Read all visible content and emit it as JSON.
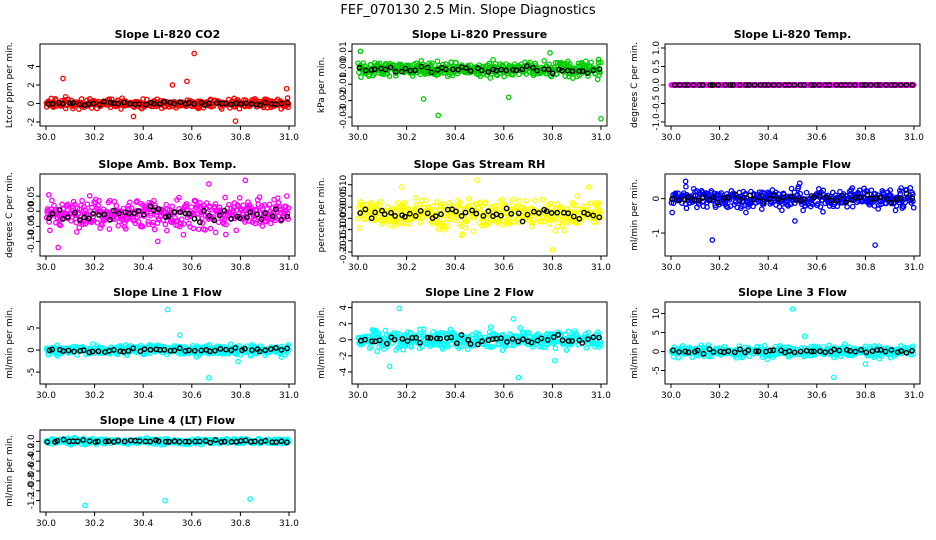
{
  "title": "FEF_070130  2.5 Min. Slope Diagnostics",
  "x_ticks": [
    "30.0",
    "30.2",
    "30.4",
    "30.6",
    "30.8",
    "31.0"
  ],
  "chart_data": [
    {
      "type": "scatter",
      "title": "Slope Li-820 CO2",
      "ylabel": "Ltcor ppm per min.",
      "xlim": [
        30.0,
        31.0
      ],
      "ylim": [
        -2.0,
        6.0
      ],
      "yticks": [
        {
          "v": -2,
          "label": "-2"
        },
        {
          "v": 0,
          "label": "0"
        },
        {
          "v": 2,
          "label": "2"
        },
        {
          "v": 4,
          "label": "4"
        }
      ],
      "color": "#ff0000",
      "center": 0.0,
      "spread": 0.35,
      "outliers": [
        {
          "x": 30.61,
          "y": 5.4
        },
        {
          "x": 30.58,
          "y": 2.4
        },
        {
          "x": 30.52,
          "y": 2.0
        },
        {
          "x": 30.07,
          "y": 2.7
        },
        {
          "x": 30.78,
          "y": -1.9
        },
        {
          "x": 30.36,
          "y": -1.4
        },
        {
          "x": 30.99,
          "y": 1.6
        }
      ]
    },
    {
      "type": "scatter",
      "title": "Slope Li-820 Pressure",
      "ylabel": "kPa per min.",
      "xlim": [
        30.0,
        31.0
      ],
      "ylim": [
        -0.033,
        0.012
      ],
      "yticks": [
        {
          "v": -0.03,
          "label": "-0.03"
        },
        {
          "v": -0.02,
          "label": "-0.02"
        },
        {
          "v": -0.01,
          "label": "-0.01"
        },
        {
          "v": 0.0,
          "label": "0.00"
        },
        {
          "v": 0.01,
          "label": "0.01"
        }
      ],
      "color": "#00cc00",
      "center": -0.001,
      "spread": 0.0032,
      "outliers": [
        {
          "x": 30.33,
          "y": -0.029
        },
        {
          "x": 31.0,
          "y": -0.031
        },
        {
          "x": 30.27,
          "y": -0.019
        },
        {
          "x": 30.62,
          "y": -0.018
        },
        {
          "x": 30.01,
          "y": 0.01
        },
        {
          "x": 30.79,
          "y": 0.009
        },
        {
          "x": 30.99,
          "y": 0.005
        }
      ]
    },
    {
      "type": "scatter",
      "title": "Slope Li-820 Temp.",
      "ylabel": "degrees C per min.",
      "xlim": [
        30.0,
        31.0
      ],
      "ylim": [
        -1.0,
        1.0
      ],
      "yticks": [
        {
          "v": -1.0,
          "label": "-1.0"
        },
        {
          "v": -0.5,
          "label": "-0.5"
        },
        {
          "v": 0.0,
          "label": "0.0"
        },
        {
          "v": 0.5,
          "label": "0.5"
        },
        {
          "v": 1.0,
          "label": "1.0"
        }
      ],
      "color": "#ff00ff",
      "center": 0.0,
      "spread": 0.0,
      "outliers": []
    },
    {
      "type": "scatter",
      "title": "Slope Amb. Box Temp.",
      "ylabel": "degrees C per min.",
      "xlim": [
        30.0,
        31.0
      ],
      "ylim": [
        -0.135,
        0.11
      ],
      "yticks": [
        {
          "v": -0.1,
          "label": "-0.10"
        },
        {
          "v": -0.05,
          "label": "-0.05"
        },
        {
          "v": 0.0,
          "label": "0.00"
        },
        {
          "v": 0.05,
          "label": "0.05"
        }
      ],
      "color": "#ff00ff",
      "center": -0.01,
      "spread": 0.035,
      "outliers": [
        {
          "x": 30.82,
          "y": 0.102
        },
        {
          "x": 30.05,
          "y": -0.12
        },
        {
          "x": 30.46,
          "y": -0.1
        },
        {
          "x": 30.67,
          "y": 0.09
        }
      ]
    },
    {
      "type": "scatter",
      "title": "Slope Gas Stream RH",
      "ylabel": "percent per min.",
      "xlim": [
        30.0,
        31.0
      ],
      "ylim": [
        -0.2,
        0.13
      ],
      "yticks": [
        {
          "v": -0.2,
          "label": "-0.20"
        },
        {
          "v": -0.15,
          "label": "-0.15"
        },
        {
          "v": -0.1,
          "label": "-0.10"
        },
        {
          "v": -0.05,
          "label": "-0.05"
        },
        {
          "v": 0.0,
          "label": "0.00"
        },
        {
          "v": 0.05,
          "label": "0.05"
        },
        {
          "v": 0.1,
          "label": "0.10"
        }
      ],
      "color": "#ffff00",
      "center": -0.03,
      "spread": 0.045,
      "outliers": [
        {
          "x": 30.8,
          "y": -0.19
        },
        {
          "x": 30.49,
          "y": 0.12
        },
        {
          "x": 30.18,
          "y": 0.09
        },
        {
          "x": 30.95,
          "y": 0.09
        }
      ]
    },
    {
      "type": "scatter",
      "title": "Slope Sample Flow",
      "ylabel": "ml/min per min.",
      "xlim": [
        30.0,
        31.0
      ],
      "ylim": [
        -1.55,
        0.6
      ],
      "yticks": [
        {
          "v": -1.0,
          "label": "-1"
        },
        {
          "v": 0.0,
          "label": "0"
        }
      ],
      "color": "#0000ff",
      "center": 0.0,
      "spread": 0.2,
      "outliers": [
        {
          "x": 30.17,
          "y": -1.2
        },
        {
          "x": 30.84,
          "y": -1.35
        },
        {
          "x": 30.51,
          "y": -0.65
        },
        {
          "x": 30.06,
          "y": 0.5
        },
        {
          "x": 30.53,
          "y": 0.45
        }
      ]
    },
    {
      "type": "scatter",
      "title": "Slope Line 1 Flow",
      "ylabel": "ml/min per min.",
      "xlim": [
        30.0,
        31.0
      ],
      "ylim": [
        -6.8,
        10.0
      ],
      "yticks": [
        {
          "v": -5,
          "label": "-5"
        },
        {
          "v": 0,
          "label": "0"
        },
        {
          "v": 5,
          "label": "5"
        }
      ],
      "color": "#00ffff",
      "center": 0.0,
      "spread": 0.8,
      "outliers": [
        {
          "x": 30.5,
          "y": 9.2
        },
        {
          "x": 30.67,
          "y": -6.3
        },
        {
          "x": 30.55,
          "y": 3.4
        },
        {
          "x": 30.79,
          "y": -2.6
        }
      ]
    },
    {
      "type": "scatter",
      "title": "Slope Line 2 Flow",
      "ylabel": "ml/min per min.",
      "xlim": [
        30.0,
        31.0
      ],
      "ylim": [
        -5.0,
        4.2
      ],
      "yticks": [
        {
          "v": -4,
          "label": "-4"
        },
        {
          "v": -2,
          "label": "-2"
        },
        {
          "v": 0,
          "label": "0"
        },
        {
          "v": 2,
          "label": "2"
        },
        {
          "v": 4,
          "label": "4"
        }
      ],
      "color": "#00ffff",
      "center": 0.0,
      "spread": 0.8,
      "outliers": [
        {
          "x": 30.17,
          "y": 3.9
        },
        {
          "x": 30.66,
          "y": -4.7
        },
        {
          "x": 30.13,
          "y": -3.3
        },
        {
          "x": 30.64,
          "y": 2.6
        },
        {
          "x": 30.81,
          "y": -2.6
        }
      ]
    },
    {
      "type": "scatter",
      "title": "Slope Line 3 Flow",
      "ylabel": "ml/min per min.",
      "xlim": [
        30.0,
        31.0
      ],
      "ylim": [
        -7.5,
        12.0
      ],
      "yticks": [
        {
          "v": -5,
          "label": "-5"
        },
        {
          "v": 0,
          "label": "0"
        },
        {
          "v": 5,
          "label": "5"
        },
        {
          "v": 10,
          "label": "10"
        }
      ],
      "color": "#00ffff",
      "center": 0.0,
      "spread": 1.0,
      "outliers": [
        {
          "x": 30.5,
          "y": 11.2
        },
        {
          "x": 30.67,
          "y": -6.8
        },
        {
          "x": 30.55,
          "y": 4.0
        },
        {
          "x": 30.8,
          "y": -3.3
        }
      ]
    },
    {
      "type": "scatter",
      "title": "Slope Line 4 (LT) Flow",
      "ylabel": "ml/min per min.",
      "xlim": [
        30.0,
        31.0
      ],
      "ylim": [
        -1.35,
        0.15
      ],
      "yticks": [
        {
          "v": -1.2,
          "label": "-1.2"
        },
        {
          "v": -1.0,
          "label": "-1.0"
        },
        {
          "v": -0.8,
          "label": "-0.8"
        },
        {
          "v": -0.6,
          "label": "-0.6"
        },
        {
          "v": -0.4,
          "label": "-0.4"
        },
        {
          "v": -0.2,
          "label": "-0.2"
        },
        {
          "v": 0.0,
          "label": "0.0"
        }
      ],
      "color": "#00ffff",
      "center": 0.0,
      "spread": 0.04,
      "outliers": [
        {
          "x": 30.16,
          "y": -1.3
        },
        {
          "x": 30.49,
          "y": -1.2
        },
        {
          "x": 30.84,
          "y": -1.17
        }
      ]
    }
  ]
}
